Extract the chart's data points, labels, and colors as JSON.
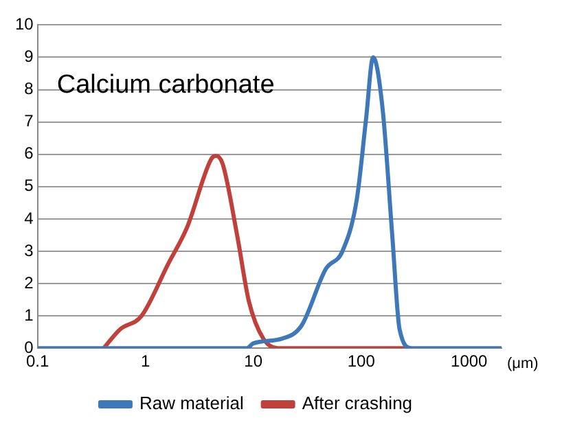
{
  "chart_data": {
    "type": "line",
    "xlabel": "(μm)",
    "annotations": [
      "Calcium carbonate"
    ],
    "log": "x",
    "xlim": [
      0.1,
      2000
    ],
    "xticks": [
      0.1,
      1,
      10,
      100,
      1000
    ],
    "ylim": [
      0,
      10
    ],
    "yticks": [
      0,
      1,
      2,
      3,
      4,
      5,
      6,
      7,
      8,
      9,
      10
    ],
    "grid": "y",
    "legend": "bottom",
    "marker": "none",
    "line_style": "solid",
    "series": [
      {
        "name": "Raw material",
        "color": "#3f78b8",
        "x": [
          0.1,
          8.7,
          10,
          18.6,
          28,
          47,
          67,
          91,
          111,
          129,
          158,
          194,
          227,
          293,
          2000
        ],
        "values": [
          0,
          0,
          0.15,
          0.3,
          0.7,
          2.45,
          3.0,
          4.6,
          7.1,
          9.0,
          7.4,
          3.5,
          0.58,
          0,
          0
        ]
      },
      {
        "name": "After crashing",
        "color": "#c0413b",
        "x": [
          0.41,
          0.58,
          0.92,
          1.62,
          2.44,
          4.07,
          4.5,
          5.2,
          7.1,
          9.1,
          12.4,
          16.9,
          270
        ],
        "values": [
          0,
          0.58,
          1.0,
          2.6,
          3.75,
          5.85,
          5.95,
          5.7,
          3.47,
          1.45,
          0.29,
          0,
          0
        ]
      }
    ]
  }
}
